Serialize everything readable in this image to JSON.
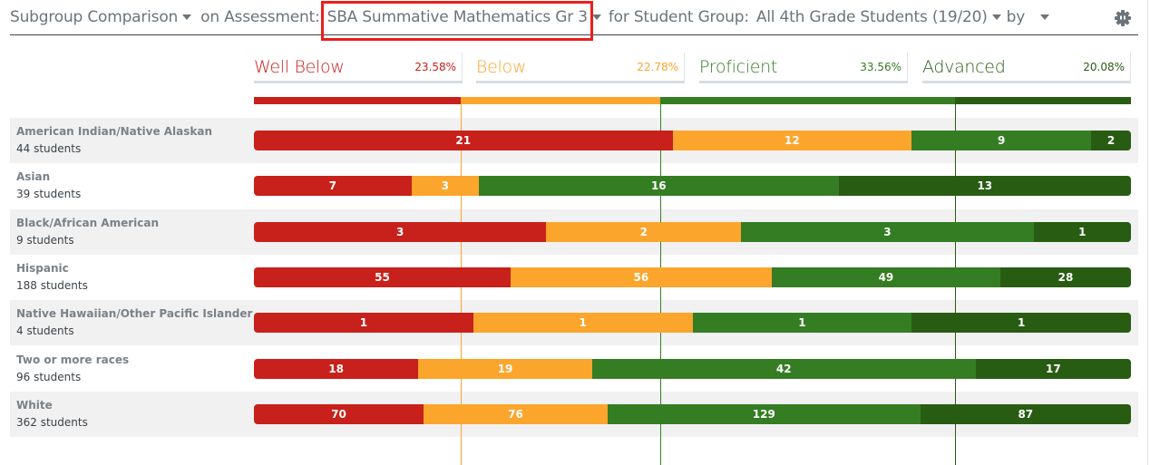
{
  "toolbar": {
    "view_label": "Subgroup Comparison",
    "assessment_prefix": "on Assessment:",
    "assessment_value": "SBA Summative Mathematics Gr 3",
    "group_prefix": "for Student Group:",
    "group_value": "All 4th Grade Students (19/20)",
    "by_label": "by",
    "by_value": ""
  },
  "colors": {
    "well_below": "#c8201a",
    "below": "#fba52c",
    "proficient": "#347d23",
    "advanced": "#285c13",
    "highlight": "#e8201c"
  },
  "legend": [
    {
      "label": "Well Below",
      "pct": "23.58%",
      "color": "#c8201a"
    },
    {
      "label": "Below",
      "pct": "22.78%",
      "color": "#fba52c"
    },
    {
      "label": "Proficient",
      "pct": "33.56%",
      "color": "#347d23"
    },
    {
      "label": "Advanced",
      "pct": "20.08%",
      "color": "#285c13"
    }
  ],
  "rows": [
    {
      "name": "American Indian/Native Alaskan",
      "count": "44 students",
      "values": [
        21,
        12,
        9,
        2
      ]
    },
    {
      "name": "Asian",
      "count": "39 students",
      "values": [
        7,
        3,
        16,
        13
      ]
    },
    {
      "name": "Black/African American",
      "count": "9 students",
      "values": [
        3,
        2,
        3,
        1
      ]
    },
    {
      "name": "Hispanic",
      "count": "188 students",
      "values": [
        55,
        56,
        49,
        28
      ]
    },
    {
      "name": "Native Hawaiian/Other Pacific Islander",
      "count": "4 students",
      "values": [
        1,
        1,
        1,
        1
      ]
    },
    {
      "name": "Two or more races",
      "count": "96 students",
      "values": [
        18,
        19,
        42,
        17
      ]
    },
    {
      "name": "White",
      "count": "362 students",
      "values": [
        70,
        76,
        129,
        87
      ]
    }
  ],
  "chart_data": {
    "type": "bar",
    "orientation": "horizontal",
    "stacked": "percent",
    "title": "Subgroup Comparison on Assessment: SBA Summative Mathematics Gr 3",
    "categories": [
      "American Indian/Native Alaskan",
      "Asian",
      "Black/African American",
      "Hispanic",
      "Native Hawaiian/Other Pacific Islander",
      "Two or more races",
      "White"
    ],
    "category_totals": [
      44,
      39,
      9,
      188,
      4,
      96,
      362
    ],
    "series": [
      {
        "name": "Well Below",
        "overall_pct": 23.58,
        "values": [
          21,
          7,
          3,
          55,
          1,
          18,
          70
        ]
      },
      {
        "name": "Below",
        "overall_pct": 22.78,
        "values": [
          12,
          3,
          2,
          56,
          1,
          19,
          76
        ]
      },
      {
        "name": "Proficient",
        "overall_pct": 33.56,
        "values": [
          9,
          16,
          3,
          49,
          1,
          42,
          129
        ]
      },
      {
        "name": "Advanced",
        "overall_pct": 20.08,
        "values": [
          2,
          13,
          1,
          28,
          1,
          17,
          87
        ]
      }
    ],
    "reference_lines": [
      "Well Below/Below boundary",
      "Below/Proficient boundary",
      "Proficient/Advanced boundary"
    ],
    "legend_position": "top",
    "xlabel": "",
    "ylabel": ""
  }
}
